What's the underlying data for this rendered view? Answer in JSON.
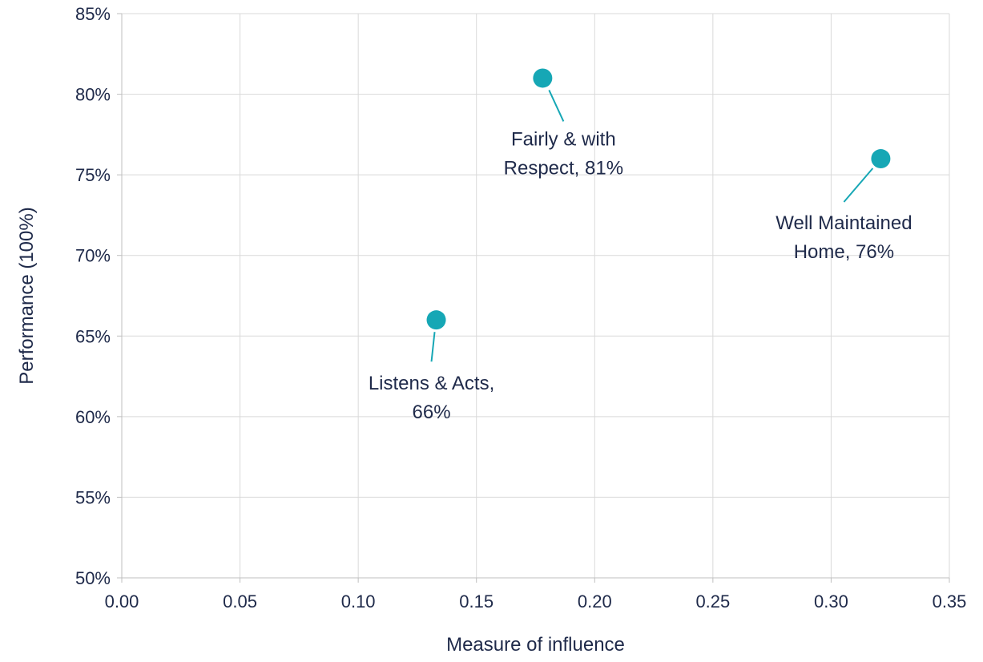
{
  "chart_data": {
    "type": "scatter",
    "title": "",
    "xlabel": "Measure of influence",
    "ylabel": "Performance (100%)",
    "xlim": [
      0,
      0.35
    ],
    "ylim": [
      50,
      85
    ],
    "x_ticks": [
      0,
      0.05,
      0.1,
      0.15,
      0.2,
      0.25,
      0.3,
      0.35
    ],
    "x_tick_labels": [
      "0.00",
      "0.05",
      "0.10",
      "0.15",
      "0.20",
      "0.25",
      "0.30",
      "0.35"
    ],
    "y_ticks": [
      50,
      55,
      60,
      65,
      70,
      75,
      80,
      85
    ],
    "y_tick_labels": [
      "50%",
      "55%",
      "60%",
      "65%",
      "70%",
      "75%",
      "80%",
      "85%"
    ],
    "grid": true,
    "legend": "none",
    "marker_color": "#16a7b5",
    "points": [
      {
        "x": 0.178,
        "y": 81,
        "label_lines": [
          "Fairly & with",
          "Respect, 81%"
        ]
      },
      {
        "x": 0.321,
        "y": 76,
        "label_lines": [
          "Well Maintained",
          "Home, 76%"
        ]
      },
      {
        "x": 0.133,
        "y": 66,
        "label_lines": [
          "Listens & Acts,",
          "66%"
        ]
      }
    ]
  }
}
